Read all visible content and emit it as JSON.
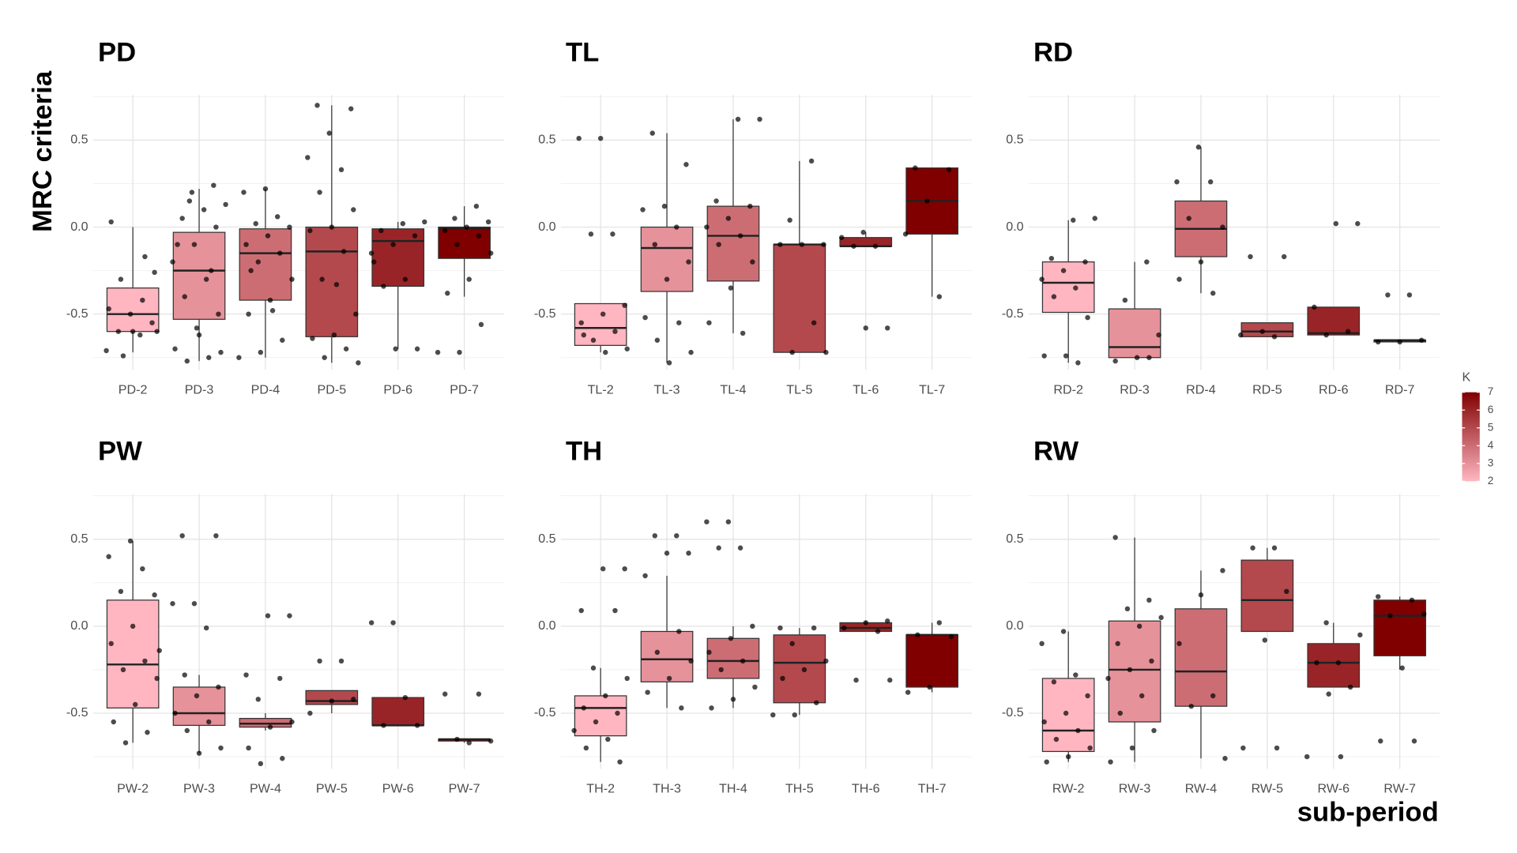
{
  "y_label": "MRC criteria",
  "x_label": "sub-period",
  "legend": {
    "title": "K",
    "ticks": [
      2,
      3,
      4,
      5,
      6,
      7
    ],
    "limits": [
      2,
      7
    ],
    "colors": [
      "#ffb6c1",
      "#800000"
    ]
  },
  "chart_data": [
    {
      "type": "box",
      "title": "PD",
      "categories": [
        "PD-2",
        "PD-3",
        "PD-4",
        "PD-5",
        "PD-6",
        "PD-7"
      ],
      "k": [
        2,
        3,
        4,
        5,
        6,
        7
      ],
      "ylim": [
        -0.82,
        0.76
      ],
      "yticks": [
        -0.5,
        {
          "value": 0,
          "label": "0.0"
        },
        0.5
      ],
      "minor_yticks": [
        -0.75,
        -0.25,
        0.25,
        0.75
      ],
      "boxes": [
        {
          "low": -0.72,
          "q1": -0.6,
          "median": -0.5,
          "q3": -0.35,
          "high": 0.0,
          "points": [
            -0.71,
            -0.62,
            -0.6,
            -0.55,
            -0.5,
            -0.47,
            -0.42,
            -0.3,
            -0.26,
            -0.6,
            0.03,
            -0.17,
            -0.74,
            -0.6
          ]
        },
        {
          "low": -0.77,
          "q1": -0.53,
          "median": -0.25,
          "q3": -0.03,
          "high": 0.22,
          "points": [
            0.24,
            0.2,
            0.13,
            0.1,
            0.05,
            0,
            -0.1,
            -0.2,
            -0.3,
            -0.4,
            -0.5,
            -0.58,
            -0.7,
            -0.75,
            -0.77,
            -0.72,
            -0.62,
            -0.1,
            -0.25,
            0.15
          ]
        },
        {
          "low": -0.75,
          "q1": -0.42,
          "median": -0.15,
          "q3": -0.01,
          "high": 0.22,
          "points": [
            0.22,
            0.2,
            0.06,
            0.02,
            0,
            -0.05,
            -0.1,
            -0.15,
            -0.2,
            -0.3,
            -0.42,
            -0.5,
            -0.65,
            -0.72,
            -0.75,
            -0.48,
            -0.25
          ]
        },
        {
          "low": -0.78,
          "q1": -0.63,
          "median": -0.14,
          "q3": 0.0,
          "high": 0.7,
          "points": [
            0.7,
            0.68,
            0.54,
            0.4,
            0.33,
            0.2,
            0.1,
            0,
            -0.02,
            -0.14,
            -0.3,
            -0.5,
            -0.62,
            -0.64,
            -0.7,
            -0.75,
            -0.78,
            -0.33
          ]
        },
        {
          "low": -0.7,
          "q1": -0.34,
          "median": -0.08,
          "q3": -0.01,
          "high": 0.03,
          "points": [
            0.03,
            0.02,
            -0.02,
            -0.05,
            -0.1,
            -0.15,
            -0.3,
            -0.34,
            -0.7,
            -0.7,
            -0.2
          ]
        },
        {
          "low": -0.4,
          "q1": -0.18,
          "median": -0.01,
          "q3": 0.0,
          "high": 0.12,
          "points": [
            0.12,
            0.05,
            0.03,
            0,
            -0.02,
            -0.05,
            -0.1,
            -0.15,
            -0.3,
            -0.38,
            -0.56,
            -0.72,
            -0.72
          ]
        }
      ]
    },
    {
      "type": "box",
      "title": "TL",
      "categories": [
        "TL-2",
        "TL-3",
        "TL-4",
        "TL-5",
        "TL-6",
        "TL-7"
      ],
      "k": [
        2,
        3,
        4,
        5,
        6,
        7
      ],
      "ylim": [
        -0.82,
        0.76
      ],
      "yticks": [
        -0.5,
        {
          "value": 0,
          "label": "0.0"
        },
        0.5
      ],
      "minor_yticks": [
        -0.75,
        -0.25,
        0.25,
        0.75
      ],
      "boxes": [
        {
          "low": -0.72,
          "q1": -0.68,
          "median": -0.58,
          "q3": -0.44,
          "high": -0.44,
          "points": [
            0.51,
            0.51,
            -0.04,
            -0.04,
            -0.45,
            -0.5,
            -0.55,
            -0.6,
            -0.65,
            -0.7,
            -0.72,
            -0.62
          ]
        },
        {
          "low": -0.78,
          "q1": -0.37,
          "median": -0.12,
          "q3": 0.0,
          "high": 0.54,
          "points": [
            0.54,
            0.36,
            0.12,
            0.1,
            0,
            -0.1,
            -0.2,
            -0.3,
            -0.52,
            -0.55,
            -0.65,
            -0.72,
            -0.78
          ]
        },
        {
          "low": -0.61,
          "q1": -0.31,
          "median": -0.05,
          "q3": 0.12,
          "high": 0.62,
          "points": [
            0.62,
            0.62,
            0.15,
            0.12,
            0.05,
            0,
            -0.05,
            -0.1,
            -0.2,
            -0.35,
            -0.55,
            -0.61
          ]
        },
        {
          "low": -0.72,
          "q1": -0.72,
          "median": -0.1,
          "q3": -0.1,
          "high": 0.38,
          "points": [
            0.38,
            0.04,
            -0.1,
            -0.1,
            -0.1,
            -0.55,
            -0.72,
            -0.72
          ]
        },
        {
          "low": -0.11,
          "q1": -0.11,
          "median": -0.11,
          "q3": -0.06,
          "high": -0.03,
          "points": [
            -0.03,
            -0.06,
            -0.11,
            -0.11,
            -0.58,
            -0.58
          ]
        },
        {
          "low": -0.4,
          "q1": -0.04,
          "median": 0.15,
          "q3": 0.34,
          "high": 0.34,
          "points": [
            0.34,
            0.33,
            0.15,
            -0.04,
            -0.4
          ]
        }
      ]
    },
    {
      "type": "box",
      "title": "RD",
      "categories": [
        "RD-2",
        "RD-3",
        "RD-4",
        "RD-5",
        "RD-6",
        "RD-7"
      ],
      "k": [
        2,
        3,
        4,
        5,
        6,
        7
      ],
      "ylim": [
        -0.82,
        0.76
      ],
      "yticks": [
        -0.5,
        {
          "value": 0,
          "label": "0.0"
        },
        0.5
      ],
      "minor_yticks": [
        -0.75,
        -0.25,
        0.25,
        0.75
      ],
      "boxes": [
        {
          "low": -0.78,
          "q1": -0.49,
          "median": -0.32,
          "q3": -0.2,
          "high": 0.04,
          "points": [
            0.05,
            0.04,
            -0.18,
            -0.2,
            -0.25,
            -0.3,
            -0.35,
            -0.4,
            -0.52,
            -0.74,
            -0.74,
            -0.78
          ]
        },
        {
          "low": -0.75,
          "q1": -0.75,
          "median": -0.69,
          "q3": -0.47,
          "high": -0.2,
          "points": [
            -0.2,
            -0.42,
            -0.62,
            -0.75,
            -0.77,
            -0.75
          ]
        },
        {
          "low": -0.38,
          "q1": -0.17,
          "median": -0.01,
          "q3": 0.15,
          "high": 0.46,
          "points": [
            0.46,
            0.26,
            0.26,
            0.05,
            0,
            -0.2,
            -0.3,
            -0.38
          ]
        },
        {
          "low": -0.63,
          "q1": -0.63,
          "median": -0.6,
          "q3": -0.55,
          "high": -0.55,
          "points": [
            -0.17,
            -0.17,
            -0.6,
            -0.62,
            -0.63
          ]
        },
        {
          "low": -0.62,
          "q1": -0.62,
          "median": -0.61,
          "q3": -0.46,
          "high": -0.46,
          "points": [
            0.02,
            0.02,
            -0.46,
            -0.6,
            -0.62
          ]
        },
        {
          "low": -0.66,
          "q1": -0.66,
          "median": -0.65,
          "q3": -0.65,
          "high": -0.65,
          "points": [
            -0.39,
            -0.39,
            -0.65,
            -0.66,
            -0.66
          ]
        }
      ]
    },
    {
      "type": "box",
      "title": "PW",
      "categories": [
        "PW-2",
        "PW-3",
        "PW-4",
        "PW-5",
        "PW-6",
        "PW-7"
      ],
      "k": [
        2,
        3,
        4,
        5,
        6,
        7
      ],
      "ylim": [
        -0.82,
        0.76
      ],
      "yticks": [
        -0.5,
        {
          "value": 0,
          "label": "0.0"
        },
        0.5
      ],
      "minor_yticks": [
        -0.75,
        -0.25,
        0.25,
        0.75
      ],
      "boxes": [
        {
          "low": -0.67,
          "q1": -0.47,
          "median": -0.22,
          "q3": 0.15,
          "high": 0.49,
          "points": [
            0.49,
            0.4,
            0.33,
            0.2,
            0.18,
            0,
            -0.1,
            -0.2,
            -0.25,
            -0.3,
            -0.45,
            -0.55,
            -0.61,
            -0.67,
            -0.14
          ]
        },
        {
          "low": -0.73,
          "q1": -0.57,
          "median": -0.5,
          "q3": -0.35,
          "high": -0.28,
          "points": [
            0.52,
            0.52,
            0.13,
            0.13,
            -0.01,
            -0.28,
            -0.35,
            -0.4,
            -0.5,
            -0.55,
            -0.6,
            -0.7,
            -0.73
          ]
        },
        {
          "low": -0.6,
          "q1": -0.58,
          "median": -0.56,
          "q3": -0.53,
          "high": -0.5,
          "points": [
            0.06,
            0.06,
            -0.28,
            -0.3,
            -0.42,
            -0.55,
            -0.58,
            -0.7,
            -0.76,
            -0.79
          ]
        },
        {
          "low": -0.5,
          "q1": -0.45,
          "median": -0.43,
          "q3": -0.37,
          "high": -0.37,
          "points": [
            -0.2,
            -0.2,
            -0.42,
            -0.43,
            -0.5
          ]
        },
        {
          "low": -0.57,
          "q1": -0.57,
          "median": -0.57,
          "q3": -0.41,
          "high": -0.41,
          "points": [
            0.02,
            0.02,
            -0.41,
            -0.57,
            -0.57
          ]
        },
        {
          "low": -0.67,
          "q1": -0.66,
          "median": -0.65,
          "q3": -0.65,
          "high": -0.65,
          "points": [
            -0.39,
            -0.39,
            -0.65,
            -0.66,
            -0.67
          ]
        }
      ]
    },
    {
      "type": "box",
      "title": "TH",
      "categories": [
        "TH-2",
        "TH-3",
        "TH-4",
        "TH-5",
        "TH-6",
        "TH-7"
      ],
      "k": [
        2,
        3,
        4,
        5,
        6,
        7
      ],
      "ylim": [
        -0.82,
        0.76
      ],
      "yticks": [
        -0.5,
        {
          "value": 0,
          "label": "0.0"
        },
        0.5
      ],
      "minor_yticks": [
        -0.75,
        -0.25,
        0.25,
        0.75
      ],
      "boxes": [
        {
          "low": -0.78,
          "q1": -0.63,
          "median": -0.47,
          "q3": -0.4,
          "high": -0.24,
          "points": [
            0.33,
            0.33,
            0.09,
            0.09,
            -0.24,
            -0.3,
            -0.4,
            -0.47,
            -0.5,
            -0.55,
            -0.6,
            -0.65,
            -0.7,
            -0.78
          ]
        },
        {
          "low": -0.47,
          "q1": -0.32,
          "median": -0.19,
          "q3": -0.03,
          "high": 0.29,
          "points": [
            0.52,
            0.52,
            0.42,
            0.42,
            0.29,
            -0.03,
            -0.15,
            -0.2,
            -0.3,
            -0.38,
            -0.47
          ]
        },
        {
          "low": -0.47,
          "q1": -0.3,
          "median": -0.2,
          "q3": -0.07,
          "high": 0.0,
          "points": [
            0.6,
            0.6,
            0.45,
            0.45,
            0.0,
            -0.07,
            -0.15,
            -0.2,
            -0.25,
            -0.35,
            -0.42,
            -0.47
          ]
        },
        {
          "low": -0.51,
          "q1": -0.44,
          "median": -0.21,
          "q3": -0.05,
          "high": -0.01,
          "points": [
            -0.01,
            -0.01,
            -0.1,
            -0.2,
            -0.25,
            -0.3,
            -0.44,
            -0.51,
            -0.51
          ]
        },
        {
          "low": -0.03,
          "q1": -0.03,
          "median": -0.01,
          "q3": 0.02,
          "high": 0.03,
          "points": [
            0.03,
            0.02,
            -0.01,
            -0.03,
            -0.31,
            -0.31
          ]
        },
        {
          "low": -0.38,
          "q1": -0.35,
          "median": -0.05,
          "q3": -0.05,
          "high": 0.02,
          "points": [
            0.02,
            -0.05,
            -0.06,
            -0.35,
            -0.38
          ]
        }
      ]
    },
    {
      "type": "box",
      "title": "RW",
      "categories": [
        "RW-2",
        "RW-3",
        "RW-4",
        "RW-5",
        "RW-6",
        "RW-7"
      ],
      "k": [
        2,
        3,
        4,
        5,
        6,
        7
      ],
      "ylim": [
        -0.82,
        0.76
      ],
      "yticks": [
        -0.5,
        {
          "value": 0,
          "label": "0.0"
        },
        0.5
      ],
      "minor_yticks": [
        -0.75,
        -0.25,
        0.25,
        0.75
      ],
      "boxes": [
        {
          "low": -0.78,
          "q1": -0.72,
          "median": -0.6,
          "q3": -0.3,
          "high": -0.03,
          "points": [
            -0.03,
            -0.1,
            -0.28,
            -0.32,
            -0.4,
            -0.5,
            -0.55,
            -0.6,
            -0.65,
            -0.7,
            -0.75,
            -0.78
          ]
        },
        {
          "low": -0.78,
          "q1": -0.55,
          "median": -0.25,
          "q3": 0.03,
          "high": 0.51,
          "points": [
            0.51,
            0.15,
            0.1,
            0.05,
            0,
            -0.1,
            -0.2,
            -0.25,
            -0.3,
            -0.4,
            -0.5,
            -0.6,
            -0.7,
            -0.78
          ]
        },
        {
          "low": -0.76,
          "q1": -0.46,
          "median": -0.26,
          "q3": 0.1,
          "high": 0.32,
          "points": [
            0.32,
            0.18,
            -0.1,
            -0.4,
            -0.46,
            -0.76
          ]
        },
        {
          "low": -0.03,
          "q1": -0.03,
          "median": 0.15,
          "q3": 0.38,
          "high": 0.45,
          "points": [
            0.45,
            0.45,
            0.2,
            -0.08,
            -0.7,
            -0.7
          ]
        },
        {
          "low": -0.35,
          "q1": -0.35,
          "median": -0.21,
          "q3": -0.1,
          "high": 0.02,
          "points": [
            0.02,
            -0.05,
            -0.21,
            -0.21,
            -0.35,
            -0.39,
            -0.75,
            -0.75
          ]
        },
        {
          "low": -0.25,
          "q1": -0.17,
          "median": 0.06,
          "q3": 0.15,
          "high": 0.17,
          "points": [
            0.17,
            0.15,
            0.06,
            0.07,
            -0.24,
            -0.66,
            -0.66
          ]
        }
      ]
    }
  ]
}
